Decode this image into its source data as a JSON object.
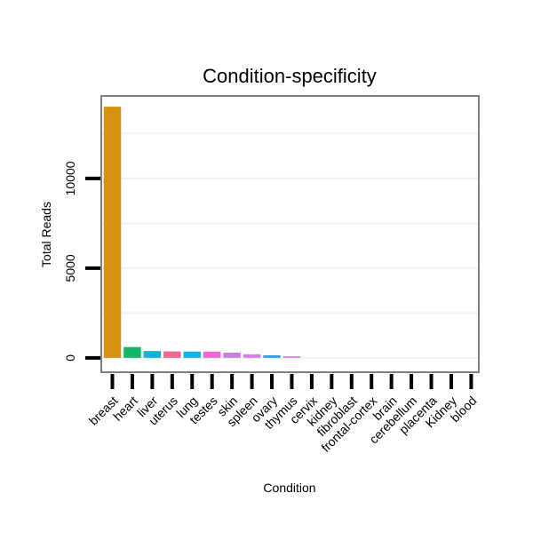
{
  "chart_data": {
    "type": "bar",
    "title": "Condition-specificity",
    "xlabel": "Condition",
    "ylabel": "Total Reads",
    "categories": [
      "breast",
      "heart",
      "liver",
      "uterus",
      "lung",
      "testes",
      "skin",
      "spleen",
      "ovary",
      "thymus",
      "cervix",
      "kidney",
      "fibroblast",
      "frontal-cortex",
      "brain",
      "cerebellum",
      "placenta",
      "Kidney",
      "blood"
    ],
    "values": [
      14000,
      600,
      380,
      360,
      350,
      350,
      290,
      200,
      140,
      90,
      0,
      0,
      0,
      0,
      0,
      0,
      0,
      0,
      0
    ],
    "colors": [
      "#d4920e",
      "#13b66a",
      "#13b3d3",
      "#ec6a8c",
      "#13b3e3",
      "#ec6ad7",
      "#c97fe3",
      "#d37fec",
      "#2aa0e3",
      "#e07fec",
      "#cccccc",
      "#cccccc",
      "#cccccc",
      "#cccccc",
      "#cccccc",
      "#cccccc",
      "#cccccc",
      "#cccccc",
      "#cccccc"
    ],
    "ylim": [
      -800,
      14600
    ],
    "yticks": [
      0,
      5000,
      10000
    ],
    "ytick_labels": [
      "0",
      "5000",
      "10000"
    ],
    "grid": true,
    "legend": "none"
  }
}
